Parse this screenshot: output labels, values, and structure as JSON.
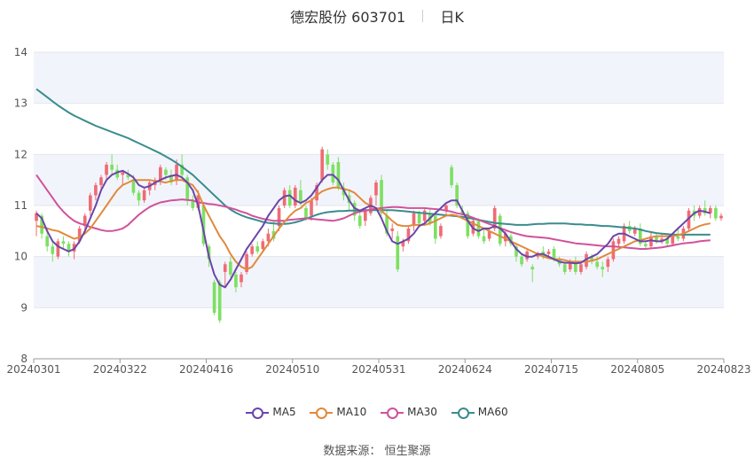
{
  "header": {
    "title": "德宏股份 603701",
    "period": "日K"
  },
  "footer": {
    "source": "数据来源： 恒生聚源"
  },
  "colors": {
    "up": "#f06b74",
    "down": "#7de063",
    "ma5": "#6a46a8",
    "ma10": "#e08a3c",
    "ma30": "#d0529b",
    "ma60": "#3a8c8e",
    "band": "#f2f4fb"
  },
  "chart_data": {
    "type": "candlestick",
    "ylim": [
      8,
      14
    ],
    "y_ticks": [
      "8",
      "9",
      "10",
      "11",
      "12",
      "13",
      "14"
    ],
    "x_ticks": [
      "20240301",
      "20240322",
      "20240416",
      "20240510",
      "20240531",
      "20240624",
      "20240715",
      "20240805",
      "20240823"
    ],
    "legend": [
      "MA5",
      "MA10",
      "MA30",
      "MA60"
    ],
    "candles": [
      [
        10.7,
        10.9,
        10.4,
        10.85
      ],
      [
        10.8,
        10.85,
        10.35,
        10.45
      ],
      [
        10.4,
        10.5,
        10.1,
        10.2
      ],
      [
        10.2,
        10.3,
        9.9,
        10.05
      ],
      [
        10.0,
        10.35,
        9.95,
        10.3
      ],
      [
        10.3,
        10.4,
        10.15,
        10.25
      ],
      [
        10.25,
        10.3,
        10.0,
        10.1
      ],
      [
        10.1,
        10.3,
        9.95,
        10.25
      ],
      [
        10.3,
        10.6,
        10.25,
        10.55
      ],
      [
        10.6,
        10.85,
        10.5,
        10.8
      ],
      [
        10.9,
        11.25,
        10.8,
        11.2
      ],
      [
        11.2,
        11.45,
        11.1,
        11.4
      ],
      [
        11.4,
        11.6,
        11.3,
        11.55
      ],
      [
        11.6,
        11.85,
        11.5,
        11.8
      ],
      [
        11.8,
        12.0,
        11.6,
        11.7
      ],
      [
        11.7,
        11.8,
        11.5,
        11.55
      ],
      [
        11.6,
        11.7,
        11.4,
        11.65
      ],
      [
        11.6,
        11.7,
        11.5,
        11.55
      ],
      [
        11.5,
        11.6,
        11.2,
        11.25
      ],
      [
        11.25,
        11.3,
        11.0,
        11.1
      ],
      [
        11.1,
        11.35,
        11.05,
        11.3
      ],
      [
        11.3,
        11.5,
        11.2,
        11.45
      ],
      [
        11.4,
        11.55,
        11.3,
        11.5
      ],
      [
        11.5,
        11.8,
        11.4,
        11.75
      ],
      [
        11.7,
        11.75,
        11.5,
        11.6
      ],
      [
        11.6,
        11.7,
        11.4,
        11.45
      ],
      [
        11.5,
        11.9,
        11.4,
        11.8
      ],
      [
        11.8,
        12.0,
        11.5,
        11.6
      ],
      [
        11.55,
        11.6,
        11.0,
        11.1
      ],
      [
        11.1,
        11.2,
        10.9,
        10.95
      ],
      [
        10.95,
        11.3,
        10.9,
        11.2
      ],
      [
        11.0,
        11.05,
        10.2,
        10.25
      ],
      [
        10.2,
        10.25,
        9.8,
        9.95
      ],
      [
        9.5,
        9.55,
        8.85,
        8.9
      ],
      [
        9.5,
        9.55,
        8.7,
        8.75
      ],
      [
        9.7,
        9.9,
        9.4,
        9.85
      ],
      [
        9.9,
        10.0,
        9.6,
        9.65
      ],
      [
        9.65,
        9.7,
        9.3,
        9.4
      ],
      [
        9.5,
        9.7,
        9.4,
        9.65
      ],
      [
        9.7,
        10.1,
        9.65,
        10.05
      ],
      [
        10.05,
        10.25,
        10.0,
        10.2
      ],
      [
        10.2,
        10.3,
        10.05,
        10.1
      ],
      [
        10.15,
        10.35,
        10.1,
        10.3
      ],
      [
        10.3,
        10.55,
        10.2,
        10.45
      ],
      [
        10.5,
        10.7,
        10.3,
        10.35
      ],
      [
        10.6,
        11.0,
        10.5,
        10.95
      ],
      [
        11.0,
        11.35,
        10.95,
        11.3
      ],
      [
        11.3,
        11.4,
        10.95,
        11.0
      ],
      [
        11.0,
        11.4,
        10.95,
        11.35
      ],
      [
        11.3,
        11.5,
        11.0,
        11.05
      ],
      [
        10.95,
        11.0,
        10.7,
        10.75
      ],
      [
        10.8,
        11.15,
        10.7,
        11.1
      ],
      [
        11.1,
        11.45,
        11.0,
        11.4
      ],
      [
        11.5,
        12.15,
        11.45,
        12.1
      ],
      [
        12.0,
        12.1,
        11.7,
        11.8
      ],
      [
        11.8,
        11.85,
        11.4,
        11.45
      ],
      [
        11.85,
        11.95,
        11.3,
        11.35
      ],
      [
        11.35,
        11.45,
        11.1,
        11.2
      ],
      [
        11.2,
        11.3,
        10.9,
        11.05
      ],
      [
        11.05,
        11.1,
        10.7,
        10.8
      ],
      [
        10.8,
        10.9,
        10.55,
        10.6
      ],
      [
        10.7,
        10.95,
        10.6,
        10.9
      ],
      [
        10.85,
        11.2,
        10.8,
        11.15
      ],
      [
        11.2,
        11.5,
        11.0,
        11.45
      ],
      [
        11.5,
        11.6,
        10.8,
        10.85
      ],
      [
        10.8,
        10.9,
        10.4,
        10.45
      ],
      [
        10.5,
        10.65,
        10.35,
        10.55
      ],
      [
        10.4,
        10.5,
        9.7,
        9.75
      ],
      [
        10.2,
        10.35,
        10.1,
        10.3
      ],
      [
        10.3,
        10.6,
        10.25,
        10.55
      ],
      [
        10.6,
        10.9,
        10.5,
        10.85
      ],
      [
        10.85,
        10.9,
        10.6,
        10.65
      ],
      [
        10.7,
        10.95,
        10.65,
        10.9
      ],
      [
        10.85,
        10.95,
        10.6,
        10.65
      ],
      [
        10.8,
        10.9,
        10.25,
        10.35
      ],
      [
        10.4,
        10.65,
        10.35,
        10.6
      ],
      [
        10.9,
        11.05,
        10.8,
        11.0
      ],
      [
        11.75,
        11.8,
        11.35,
        11.4
      ],
      [
        11.4,
        11.45,
        10.95,
        11.0
      ],
      [
        10.9,
        11.0,
        10.8,
        10.85
      ],
      [
        10.85,
        10.9,
        10.35,
        10.4
      ],
      [
        10.45,
        10.75,
        10.4,
        10.7
      ],
      [
        10.7,
        10.75,
        10.35,
        10.4
      ],
      [
        10.4,
        10.55,
        10.25,
        10.3
      ],
      [
        10.35,
        10.55,
        10.3,
        10.5
      ],
      [
        10.55,
        11.0,
        10.5,
        10.95
      ],
      [
        10.8,
        10.85,
        10.2,
        10.25
      ],
      [
        10.3,
        10.5,
        10.2,
        10.45
      ],
      [
        10.4,
        10.45,
        10.2,
        10.25
      ],
      [
        10.2,
        10.25,
        9.9,
        10.0
      ],
      [
        10.0,
        10.05,
        9.8,
        9.85
      ],
      [
        9.95,
        10.15,
        9.9,
        10.1
      ],
      [
        9.8,
        9.85,
        9.5,
        9.75
      ],
      [
        10.0,
        10.1,
        9.95,
        10.05
      ],
      [
        10.1,
        10.2,
        9.95,
        10.0
      ],
      [
        10.05,
        10.15,
        9.95,
        10.1
      ],
      [
        10.15,
        10.2,
        9.9,
        9.95
      ],
      [
        9.95,
        10.0,
        9.8,
        9.85
      ],
      [
        9.85,
        9.9,
        9.65,
        9.7
      ],
      [
        9.75,
        9.95,
        9.7,
        9.9
      ],
      [
        9.9,
        10.0,
        9.65,
        9.7
      ],
      [
        9.7,
        9.9,
        9.65,
        9.85
      ],
      [
        9.8,
        10.1,
        9.75,
        10.05
      ],
      [
        10.0,
        10.05,
        9.85,
        9.9
      ],
      [
        9.9,
        10.0,
        9.75,
        9.8
      ],
      [
        9.8,
        9.9,
        9.6,
        9.75
      ],
      [
        9.8,
        10.0,
        9.7,
        9.95
      ],
      [
        9.95,
        10.35,
        9.9,
        10.3
      ],
      [
        10.25,
        10.4,
        10.2,
        10.35
      ],
      [
        10.3,
        10.65,
        10.25,
        10.6
      ],
      [
        10.6,
        10.7,
        10.45,
        10.5
      ],
      [
        10.45,
        10.6,
        10.4,
        10.55
      ],
      [
        10.55,
        10.65,
        10.2,
        10.25
      ],
      [
        10.25,
        10.3,
        10.15,
        10.2
      ],
      [
        10.2,
        10.5,
        10.15,
        10.4
      ],
      [
        10.4,
        10.45,
        10.25,
        10.3
      ],
      [
        10.3,
        10.45,
        10.25,
        10.35
      ],
      [
        10.35,
        10.4,
        10.2,
        10.25
      ],
      [
        10.25,
        10.45,
        10.2,
        10.4
      ],
      [
        10.4,
        10.55,
        10.3,
        10.35
      ],
      [
        10.35,
        10.6,
        10.3,
        10.55
      ],
      [
        10.55,
        10.95,
        10.5,
        10.9
      ],
      [
        10.9,
        11.0,
        10.7,
        10.8
      ],
      [
        10.8,
        11.0,
        10.75,
        10.95
      ],
      [
        10.95,
        11.1,
        10.8,
        10.85
      ],
      [
        10.85,
        11.0,
        10.75,
        10.95
      ],
      [
        10.95,
        11.0,
        10.7,
        10.75
      ],
      [
        10.75,
        10.85,
        10.7,
        10.8
      ]
    ],
    "ma5": [
      10.85,
      10.75,
      10.5,
      10.3,
      10.2,
      10.15,
      10.1,
      10.15,
      10.3,
      10.5,
      10.75,
      11.0,
      11.3,
      11.5,
      11.6,
      11.65,
      11.68,
      11.62,
      11.55,
      11.4,
      11.35,
      11.38,
      11.45,
      11.5,
      11.55,
      11.58,
      11.6,
      11.55,
      11.45,
      11.3,
      11.0,
      10.5,
      10.0,
      9.65,
      9.45,
      9.4,
      9.55,
      9.75,
      9.95,
      10.15,
      10.3,
      10.45,
      10.6,
      10.8,
      10.95,
      11.1,
      11.18,
      11.2,
      11.1,
      11.05,
      11.1,
      11.2,
      11.35,
      11.5,
      11.6,
      11.6,
      11.5,
      11.3,
      11.1,
      10.95,
      10.9,
      10.95,
      11.0,
      10.95,
      10.75,
      10.5,
      10.3,
      10.25,
      10.3,
      10.35,
      10.45,
      10.6,
      10.65,
      10.75,
      10.85,
      10.95,
      11.05,
      11.1,
      11.1,
      10.9,
      10.7,
      10.55,
      10.5,
      10.55,
      10.55,
      10.6,
      10.55,
      10.45,
      10.3,
      10.15,
      10.05,
      10.0,
      10.0,
      10.05,
      10.05,
      10.0,
      9.95,
      9.9,
      9.88,
      9.88,
      9.87,
      9.88,
      9.95,
      10.0,
      10.05,
      10.15,
      10.25,
      10.4,
      10.45,
      10.45,
      10.4,
      10.35,
      10.3,
      10.3,
      10.32,
      10.3,
      10.3,
      10.35,
      10.45,
      10.55,
      10.65,
      10.75,
      10.85,
      10.9,
      10.88,
      10.85
    ],
    "ma10": [
      10.6,
      10.58,
      10.55,
      10.52,
      10.5,
      10.45,
      10.4,
      10.35,
      10.38,
      10.45,
      10.55,
      10.7,
      10.85,
      11.0,
      11.15,
      11.3,
      11.4,
      11.45,
      11.5,
      11.5,
      11.5,
      11.5,
      11.48,
      11.47,
      11.45,
      11.48,
      11.5,
      11.5,
      11.45,
      11.4,
      11.25,
      11.0,
      10.8,
      10.6,
      10.4,
      10.25,
      10.05,
      9.9,
      9.8,
      9.75,
      9.8,
      9.95,
      10.1,
      10.25,
      10.4,
      10.55,
      10.68,
      10.8,
      10.9,
      10.95,
      11.05,
      11.1,
      11.2,
      11.28,
      11.32,
      11.35,
      11.35,
      11.32,
      11.3,
      11.25,
      11.15,
      11.05,
      11.0,
      10.95,
      10.9,
      10.8,
      10.7,
      10.62,
      10.6,
      10.6,
      10.62,
      10.62,
      10.62,
      10.65,
      10.7,
      10.75,
      10.8,
      10.82,
      10.8,
      10.75,
      10.7,
      10.65,
      10.6,
      10.55,
      10.5,
      10.45,
      10.4,
      10.35,
      10.3,
      10.25,
      10.2,
      10.15,
      10.1,
      10.05,
      10.0,
      9.97,
      9.95,
      9.95,
      9.93,
      9.9,
      9.9,
      9.9,
      9.9,
      9.92,
      9.95,
      10.0,
      10.05,
      10.1,
      10.15,
      10.2,
      10.25,
      10.3,
      10.32,
      10.35,
      10.38,
      10.4,
      10.4,
      10.4,
      10.4,
      10.42,
      10.45,
      10.5,
      10.55,
      10.6,
      10.63,
      10.65
    ],
    "ma30": [
      11.6,
      11.45,
      11.3,
      11.15,
      11.0,
      10.88,
      10.78,
      10.7,
      10.65,
      10.62,
      10.58,
      10.55,
      10.52,
      10.5,
      10.5,
      10.52,
      10.55,
      10.62,
      10.72,
      10.82,
      10.9,
      10.97,
      11.02,
      11.06,
      11.08,
      11.1,
      11.11,
      11.12,
      11.11,
      11.1,
      11.06,
      11.05,
      11.03,
      11.02,
      11.0,
      10.98,
      10.95,
      10.92,
      10.88,
      10.85,
      10.8,
      10.77,
      10.74,
      10.72,
      10.7,
      10.7,
      10.7,
      10.72,
      10.73,
      10.74,
      10.75,
      10.74,
      10.73,
      10.72,
      10.71,
      10.7,
      10.72,
      10.75,
      10.8,
      10.85,
      10.88,
      10.9,
      10.92,
      10.94,
      10.95,
      10.96,
      10.97,
      10.97,
      10.96,
      10.95,
      10.95,
      10.95,
      10.95,
      10.94,
      10.93,
      10.92,
      10.9,
      10.88,
      10.85,
      10.83,
      10.8,
      10.76,
      10.72,
      10.68,
      10.64,
      10.6,
      10.56,
      10.52,
      10.48,
      10.45,
      10.42,
      10.4,
      10.39,
      10.38,
      10.37,
      10.36,
      10.34,
      10.32,
      10.3,
      10.28,
      10.26,
      10.25,
      10.24,
      10.23,
      10.22,
      10.21,
      10.2,
      10.2,
      10.19,
      10.18,
      10.17,
      10.16,
      10.15,
      10.15,
      10.16,
      10.17,
      10.18,
      10.2,
      10.22,
      10.24,
      10.26,
      10.27,
      10.28,
      10.3,
      10.31,
      10.32
    ],
    "ma60": [
      13.28,
      13.2,
      13.12,
      13.04,
      12.96,
      12.89,
      12.82,
      12.76,
      12.71,
      12.66,
      12.61,
      12.56,
      12.52,
      12.48,
      12.44,
      12.4,
      12.36,
      12.32,
      12.27,
      12.22,
      12.17,
      12.12,
      12.07,
      12.02,
      11.96,
      11.9,
      11.83,
      11.76,
      11.68,
      11.6,
      11.5,
      11.4,
      11.3,
      11.2,
      11.1,
      11.0,
      10.92,
      10.86,
      10.81,
      10.77,
      10.74,
      10.71,
      10.68,
      10.66,
      10.65,
      10.64,
      10.64,
      10.65,
      10.67,
      10.7,
      10.74,
      10.78,
      10.82,
      10.85,
      10.87,
      10.88,
      10.89,
      10.89,
      10.9,
      10.9,
      10.9,
      10.91,
      10.91,
      10.91,
      10.91,
      10.91,
      10.91,
      10.9,
      10.89,
      10.88,
      10.87,
      10.86,
      10.85,
      10.84,
      10.83,
      10.82,
      10.81,
      10.8,
      10.79,
      10.78,
      10.76,
      10.74,
      10.72,
      10.7,
      10.68,
      10.66,
      10.65,
      10.64,
      10.63,
      10.62,
      10.62,
      10.62,
      10.63,
      10.64,
      10.64,
      10.65,
      10.65,
      10.65,
      10.65,
      10.64,
      10.63,
      10.63,
      10.62,
      10.62,
      10.61,
      10.6,
      10.6,
      10.59,
      10.58,
      10.57,
      10.56,
      10.55,
      10.53,
      10.5,
      10.48,
      10.46,
      10.45,
      10.44,
      10.43,
      10.43,
      10.43,
      10.43,
      10.43,
      10.43,
      10.43,
      10.43
    ]
  }
}
